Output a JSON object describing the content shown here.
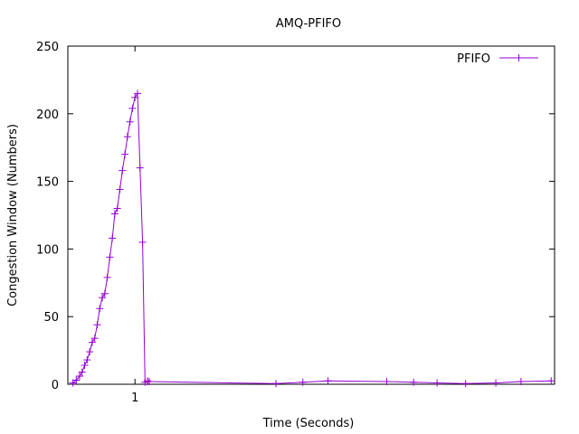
{
  "chart_data": {
    "type": "line",
    "title": "AMQ-PFIFO",
    "xlabel": "Time (Seconds)",
    "ylabel": "Congestion Window (Numbers)",
    "x_ticks": [
      {
        "value": 1,
        "label": "1"
      }
    ],
    "y_ticks": [
      0,
      50,
      100,
      150,
      200,
      250
    ],
    "xlim": [
      0.6,
      3.5
    ],
    "ylim": [
      0,
      250
    ],
    "legend_placement": "top-right",
    "series": [
      {
        "name": "PFIFO",
        "color": "#9400d3",
        "marker": "plus",
        "x": [
          0.63,
          0.65,
          0.67,
          0.685,
          0.7,
          0.715,
          0.73,
          0.745,
          0.76,
          0.775,
          0.79,
          0.805,
          0.82,
          0.835,
          0.85,
          0.865,
          0.88,
          0.895,
          0.91,
          0.925,
          0.94,
          0.955,
          0.97,
          0.985,
          1.0,
          1.015,
          1.03,
          1.045,
          1.06,
          1.075,
          1.075,
          1.085,
          1.84,
          2.0,
          2.15,
          2.5,
          2.66,
          2.8,
          2.97,
          3.15,
          3.3,
          3.48
        ],
        "y": [
          1,
          3,
          6,
          9,
          14,
          18,
          24,
          31,
          34,
          44,
          56,
          64,
          67,
          79,
          94,
          108,
          126,
          130,
          144,
          158,
          170,
          183,
          194,
          204,
          212,
          215,
          160,
          105,
          1.5,
          2,
          2.5,
          2,
          0.5,
          1.5,
          2.5,
          2,
          1.5,
          1,
          0.5,
          1,
          2,
          2.5
        ]
      }
    ]
  }
}
